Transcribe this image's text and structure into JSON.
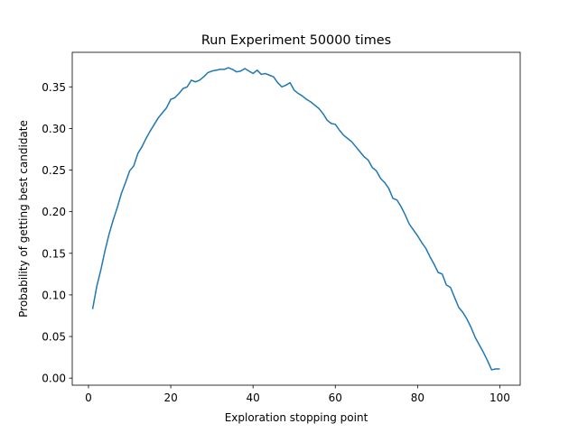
{
  "chart_data": {
    "type": "line",
    "title": "Run Experiment 50000 times",
    "x_label": "Exploration stopping point",
    "y_label": "Probability of getting best candidate",
    "x": [
      1,
      2,
      3,
      4,
      5,
      6,
      7,
      8,
      9,
      10,
      11,
      12,
      13,
      14,
      15,
      16,
      17,
      18,
      19,
      20,
      21,
      22,
      23,
      24,
      25,
      26,
      27,
      28,
      29,
      30,
      31,
      32,
      33,
      34,
      35,
      36,
      37,
      38,
      39,
      40,
      41,
      42,
      43,
      44,
      45,
      46,
      47,
      48,
      49,
      50,
      51,
      52,
      53,
      54,
      55,
      56,
      57,
      58,
      59,
      60,
      61,
      62,
      63,
      64,
      65,
      66,
      67,
      68,
      69,
      70,
      71,
      72,
      73,
      74,
      75,
      76,
      77,
      78,
      79,
      80,
      81,
      82,
      83,
      84,
      85,
      86,
      87,
      88,
      89,
      90,
      91,
      92,
      93,
      94,
      95,
      96,
      97,
      98,
      99,
      100
    ],
    "series": [
      {
        "name": "probability",
        "color": "#1f77b4",
        "values": [
          0.083,
          0.11,
          0.13,
          0.153,
          0.173,
          0.19,
          0.205,
          0.222,
          0.235,
          0.249,
          0.255,
          0.27,
          0.278,
          0.288,
          0.297,
          0.305,
          0.313,
          0.319,
          0.325,
          0.335,
          0.337,
          0.342,
          0.348,
          0.35,
          0.358,
          0.356,
          0.358,
          0.362,
          0.367,
          0.369,
          0.37,
          0.371,
          0.371,
          0.373,
          0.371,
          0.368,
          0.369,
          0.372,
          0.369,
          0.366,
          0.37,
          0.365,
          0.366,
          0.364,
          0.362,
          0.355,
          0.35,
          0.352,
          0.355,
          0.346,
          0.342,
          0.339,
          0.335,
          0.332,
          0.328,
          0.324,
          0.318,
          0.31,
          0.306,
          0.305,
          0.298,
          0.292,
          0.288,
          0.284,
          0.278,
          0.272,
          0.266,
          0.262,
          0.253,
          0.249,
          0.24,
          0.235,
          0.228,
          0.216,
          0.214,
          0.206,
          0.196,
          0.185,
          0.178,
          0.171,
          0.163,
          0.156,
          0.146,
          0.137,
          0.127,
          0.125,
          0.112,
          0.109,
          0.097,
          0.085,
          0.079,
          0.071,
          0.061,
          0.049,
          0.04,
          0.031,
          0.021,
          0.01,
          0.011,
          0.011
        ]
      }
    ],
    "xlim": [
      -3.95,
      104.95
    ],
    "xticks": [
      0,
      20,
      40,
      60,
      80,
      100
    ],
    "ylim": [
      -0.0085,
      0.3915
    ],
    "yticks": [
      {
        "value": 0,
        "label": "0.00"
      },
      {
        "value": 0.05,
        "label": "0.05"
      },
      {
        "value": 0.1,
        "label": "0.10"
      },
      {
        "value": 0.15,
        "label": "0.15"
      },
      {
        "value": 0.2,
        "label": "0.20"
      },
      {
        "value": 0.25,
        "label": "0.25"
      },
      {
        "value": 0.3,
        "label": "0.30"
      },
      {
        "value": 0.35,
        "label": "0.35"
      }
    ],
    "grid": false
  }
}
